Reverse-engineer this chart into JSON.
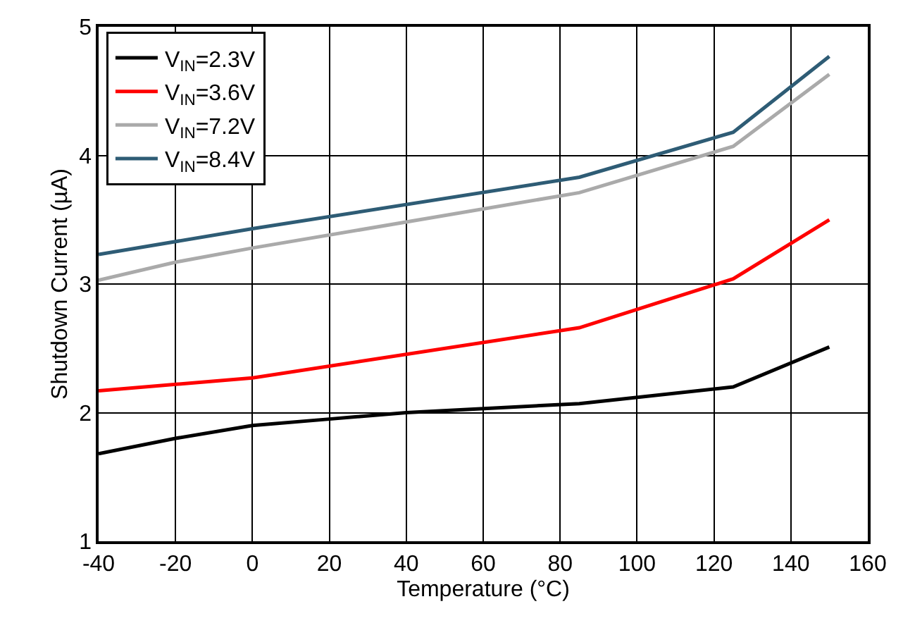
{
  "chart_data": {
    "type": "line",
    "xlabel": "Temperature (°C)",
    "ylabel": "Shutdown Current (µA)",
    "xlim": [
      -40,
      160
    ],
    "xticks": [
      -40,
      -20,
      0,
      20,
      40,
      60,
      80,
      100,
      120,
      140,
      160
    ],
    "ylim": [
      1,
      5
    ],
    "yticks": [
      1,
      2,
      3,
      4,
      5
    ],
    "grid": true,
    "legend": "top left",
    "series": [
      {
        "name": "V$_{IN}$=2.3V",
        "color": "#000000",
        "x": [
          -40,
          -20,
          0,
          20,
          40,
          85,
          125,
          150
        ],
        "values": [
          1.68,
          1.8,
          1.9,
          1.95,
          2.0,
          2.07,
          2.2,
          2.51
        ]
      },
      {
        "name": "V$_{IN}$=3.6V",
        "color": "#ff0000",
        "x": [
          -40,
          0,
          85,
          125,
          150
        ],
        "values": [
          2.17,
          2.27,
          2.66,
          3.04,
          3.5
        ]
      },
      {
        "name": "V$_{IN}$=7.2V",
        "color": "#aaaaaa",
        "x": [
          -40,
          -20,
          0,
          85,
          125,
          150
        ],
        "values": [
          3.03,
          3.17,
          3.28,
          3.71,
          4.07,
          4.63
        ]
      },
      {
        "name": "V$_{IN}$=8.4V",
        "color": "#2e5c75",
        "x": [
          -40,
          0,
          85,
          125,
          150
        ],
        "values": [
          3.23,
          3.43,
          3.83,
          4.18,
          4.77
        ]
      }
    ]
  }
}
